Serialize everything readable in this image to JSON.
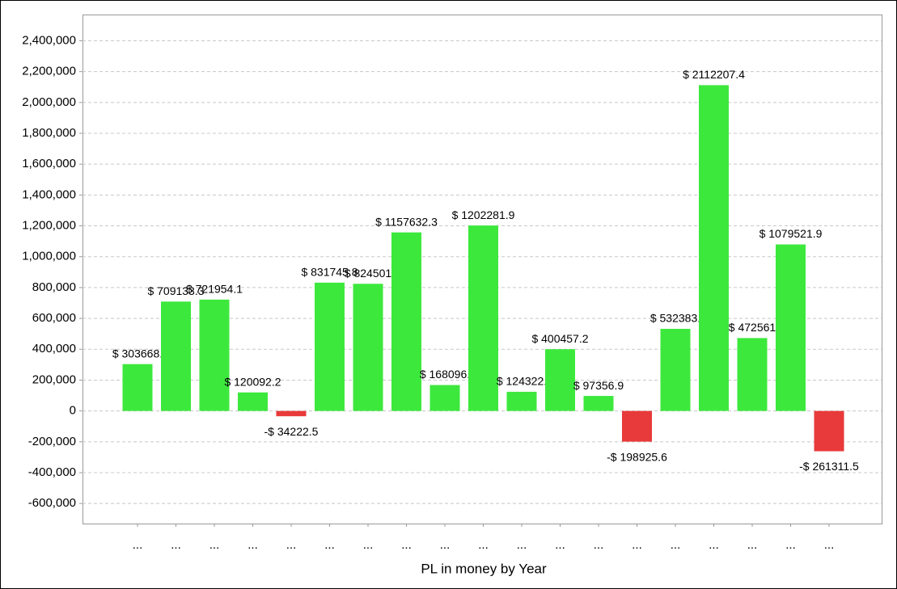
{
  "chart_data": {
    "type": "bar",
    "xlabel": "PL in money by Year",
    "categories": [
      "...",
      "...",
      "...",
      "...",
      "...",
      "...",
      "...",
      "...",
      "...",
      "...",
      "...",
      "...",
      "...",
      "...",
      "...",
      "...",
      "...",
      "...",
      "..."
    ],
    "values": [
      303668,
      709133.3,
      721954.1,
      120092.2,
      -34222.5,
      831745.8,
      824501,
      1157632.3,
      168096,
      1202281.9,
      124322,
      400457.2,
      97356.9,
      -198925.6,
      532383,
      2112207.4,
      472561,
      1079521.9,
      -261311.5
    ],
    "value_labels": [
      "$ 303668.",
      "$ 709133.3",
      "$ 721954.1",
      "$ 120092.2",
      "-$ 34222.5",
      "$ 831745.8",
      "$ 824501",
      "$ 1157632.3",
      "$ 168096.",
      "$ 1202281.9",
      "$ 124322.",
      "$ 400457.2",
      "$ 97356.9",
      "-$ 198925.6",
      "$ 532383.",
      "$ 2112207.4",
      "$ 472561",
      "$ 1079521.9",
      "-$ 261311.5"
    ],
    "positive_color": "#3de83d",
    "negative_color": "#e83a3a",
    "ylim": [
      -730000,
      2570000
    ],
    "yticks": [
      {
        "value": -600000,
        "label": "-600,000"
      },
      {
        "value": -400000,
        "label": "-400,000"
      },
      {
        "value": -200000,
        "label": "-200,000"
      },
      0,
      {
        "value": 200000,
        "label": "200,000"
      },
      {
        "value": 400000,
        "label": "400,000"
      },
      {
        "value": 600000,
        "label": "600,000"
      },
      {
        "value": 800000,
        "label": "800,000"
      },
      {
        "value": 1000000,
        "label": "1,000,000"
      },
      {
        "value": 1200000,
        "label": "1,200,000"
      },
      {
        "value": 1400000,
        "label": "1,400,000"
      },
      {
        "value": 1600000,
        "label": "1,600,000"
      },
      {
        "value": 1800000,
        "label": "1,800,000"
      },
      {
        "value": 2000000,
        "label": "2,000,000"
      },
      {
        "value": 2200000,
        "label": "2,200,000"
      },
      {
        "value": 2400000,
        "label": "2,400,000"
      }
    ],
    "grid": true
  }
}
